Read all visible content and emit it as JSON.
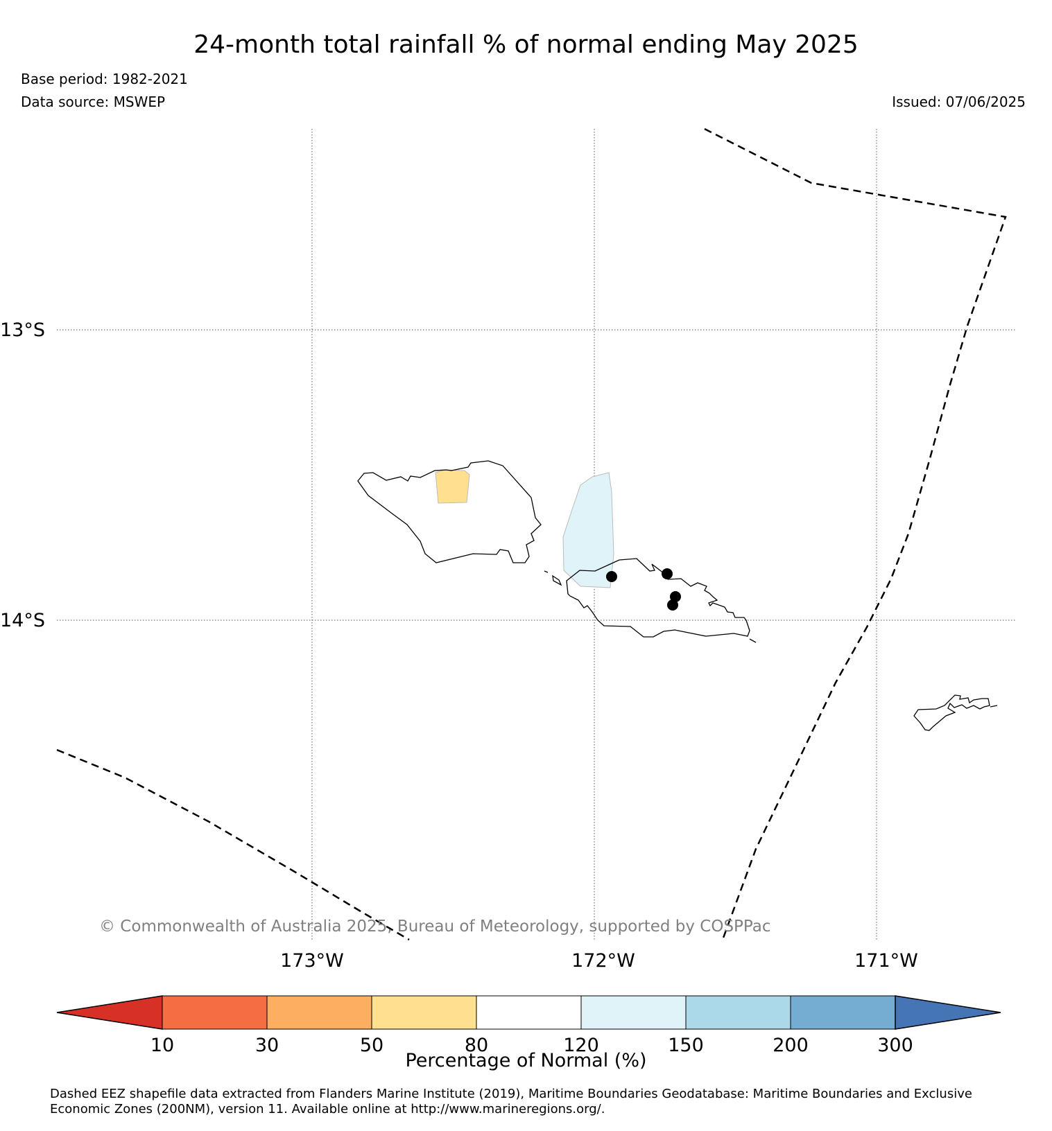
{
  "title": "24-month total rainfall % of normal ending May 2025",
  "base_period": "Base period: 1982-2021",
  "data_source": "Data source: MSWEP",
  "issued": "Issued: 07/06/2025",
  "copyright": "© Commonwealth of Australia 2025, Bureau of Meteorology, supported by COSPPac",
  "map": {
    "lat_labels": [
      "13°S",
      "14°S"
    ],
    "lon_labels": [
      "173°W",
      "172°W",
      "171°W"
    ],
    "region_colors": {
      "upolu_north": "#fee090",
      "savaii_east": "#e0f3f8"
    },
    "station_marker": "black-dot",
    "eez_line_style": "dashed"
  },
  "colorbar": {
    "label": "Percentage of Normal (%)",
    "ticks": [
      "10",
      "30",
      "50",
      "80",
      "120",
      "150",
      "200",
      "300"
    ],
    "colors": [
      "#d73027",
      "#f46d43",
      "#fdae61",
      "#fee090",
      "#ffffff",
      "#e0f3f8",
      "#abd9e9",
      "#74add1",
      "#4575b4"
    ]
  },
  "footnote": {
    "line1": "Dashed EEZ shapefile data extracted from Flanders Marine Institute (2019), Maritime Boundaries Geodatabase: Maritime Boundaries and Exclusive",
    "line2": "Economic Zones (200NM), version 11. Available online at http://www.marineregions.org/."
  }
}
